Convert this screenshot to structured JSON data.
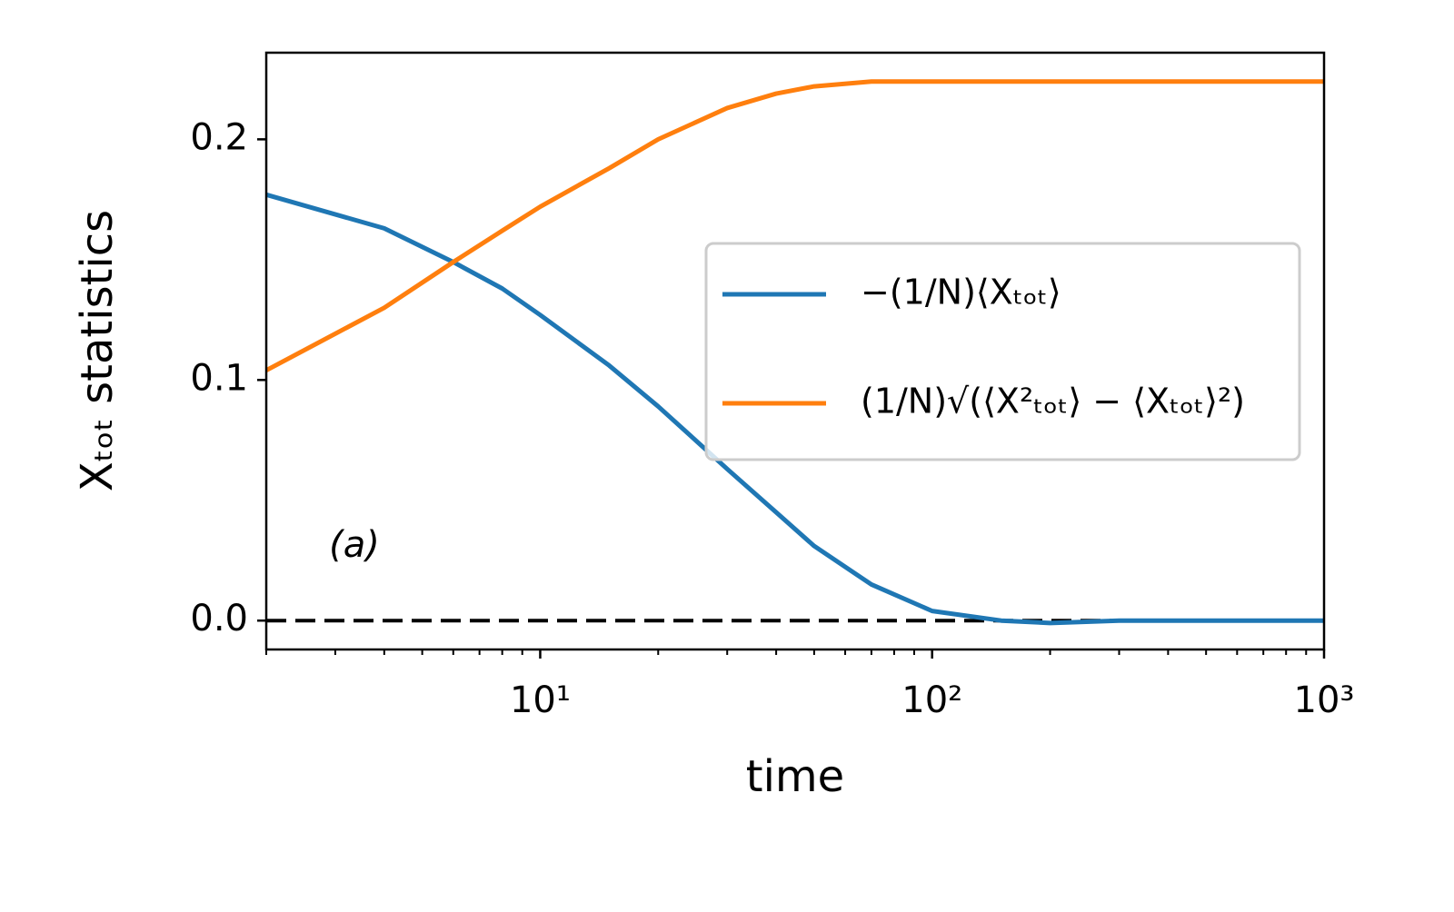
{
  "chart_data": {
    "type": "line",
    "xlabel": "time",
    "ylabel": "Xₜₒₜ statistics",
    "annotation": "(a)",
    "xscale": "log",
    "xlim": [
      2,
      1000
    ],
    "ylim": [
      -0.012,
      0.236
    ],
    "xticks": [
      {
        "value": 10,
        "label": "10¹"
      },
      {
        "value": 100,
        "label": "10²"
      },
      {
        "value": 1000,
        "label": "10³"
      }
    ],
    "xminorticks": [
      2,
      3,
      4,
      5,
      6,
      7,
      8,
      9,
      20,
      30,
      40,
      50,
      60,
      70,
      80,
      90,
      200,
      300,
      400,
      500,
      600,
      700,
      800,
      900
    ],
    "yticks": [
      {
        "value": 0,
        "label": "0.0"
      },
      0.1,
      0.2
    ],
    "grid": false,
    "legend": "center right",
    "reference_line": {
      "y": 0,
      "style": "dashed",
      "color": "#000000"
    },
    "x": [
      2,
      4,
      6,
      8,
      10,
      15,
      20,
      30,
      40,
      50,
      70,
      100,
      150,
      200,
      300,
      500,
      1000
    ],
    "series": [
      {
        "name": "−(1/N)⟨Xₜₒₜ⟩",
        "color": "#1f77b4",
        "values": [
          0.177,
          0.163,
          0.149,
          0.138,
          0.127,
          0.106,
          0.089,
          0.063,
          0.045,
          0.031,
          0.015,
          0.004,
          0.0,
          -0.001,
          0.0,
          0.0,
          0.0
        ]
      },
      {
        "name": "(1/N)√(⟨X²ₜₒₜ⟩ − ⟨Xₜₒₜ⟩²)",
        "color": "#ff7f0e",
        "values": [
          0.104,
          0.13,
          0.149,
          0.162,
          0.172,
          0.188,
          0.2,
          0.213,
          0.219,
          0.222,
          0.224,
          0.224,
          0.224,
          0.224,
          0.224,
          0.224,
          0.224
        ]
      }
    ]
  }
}
